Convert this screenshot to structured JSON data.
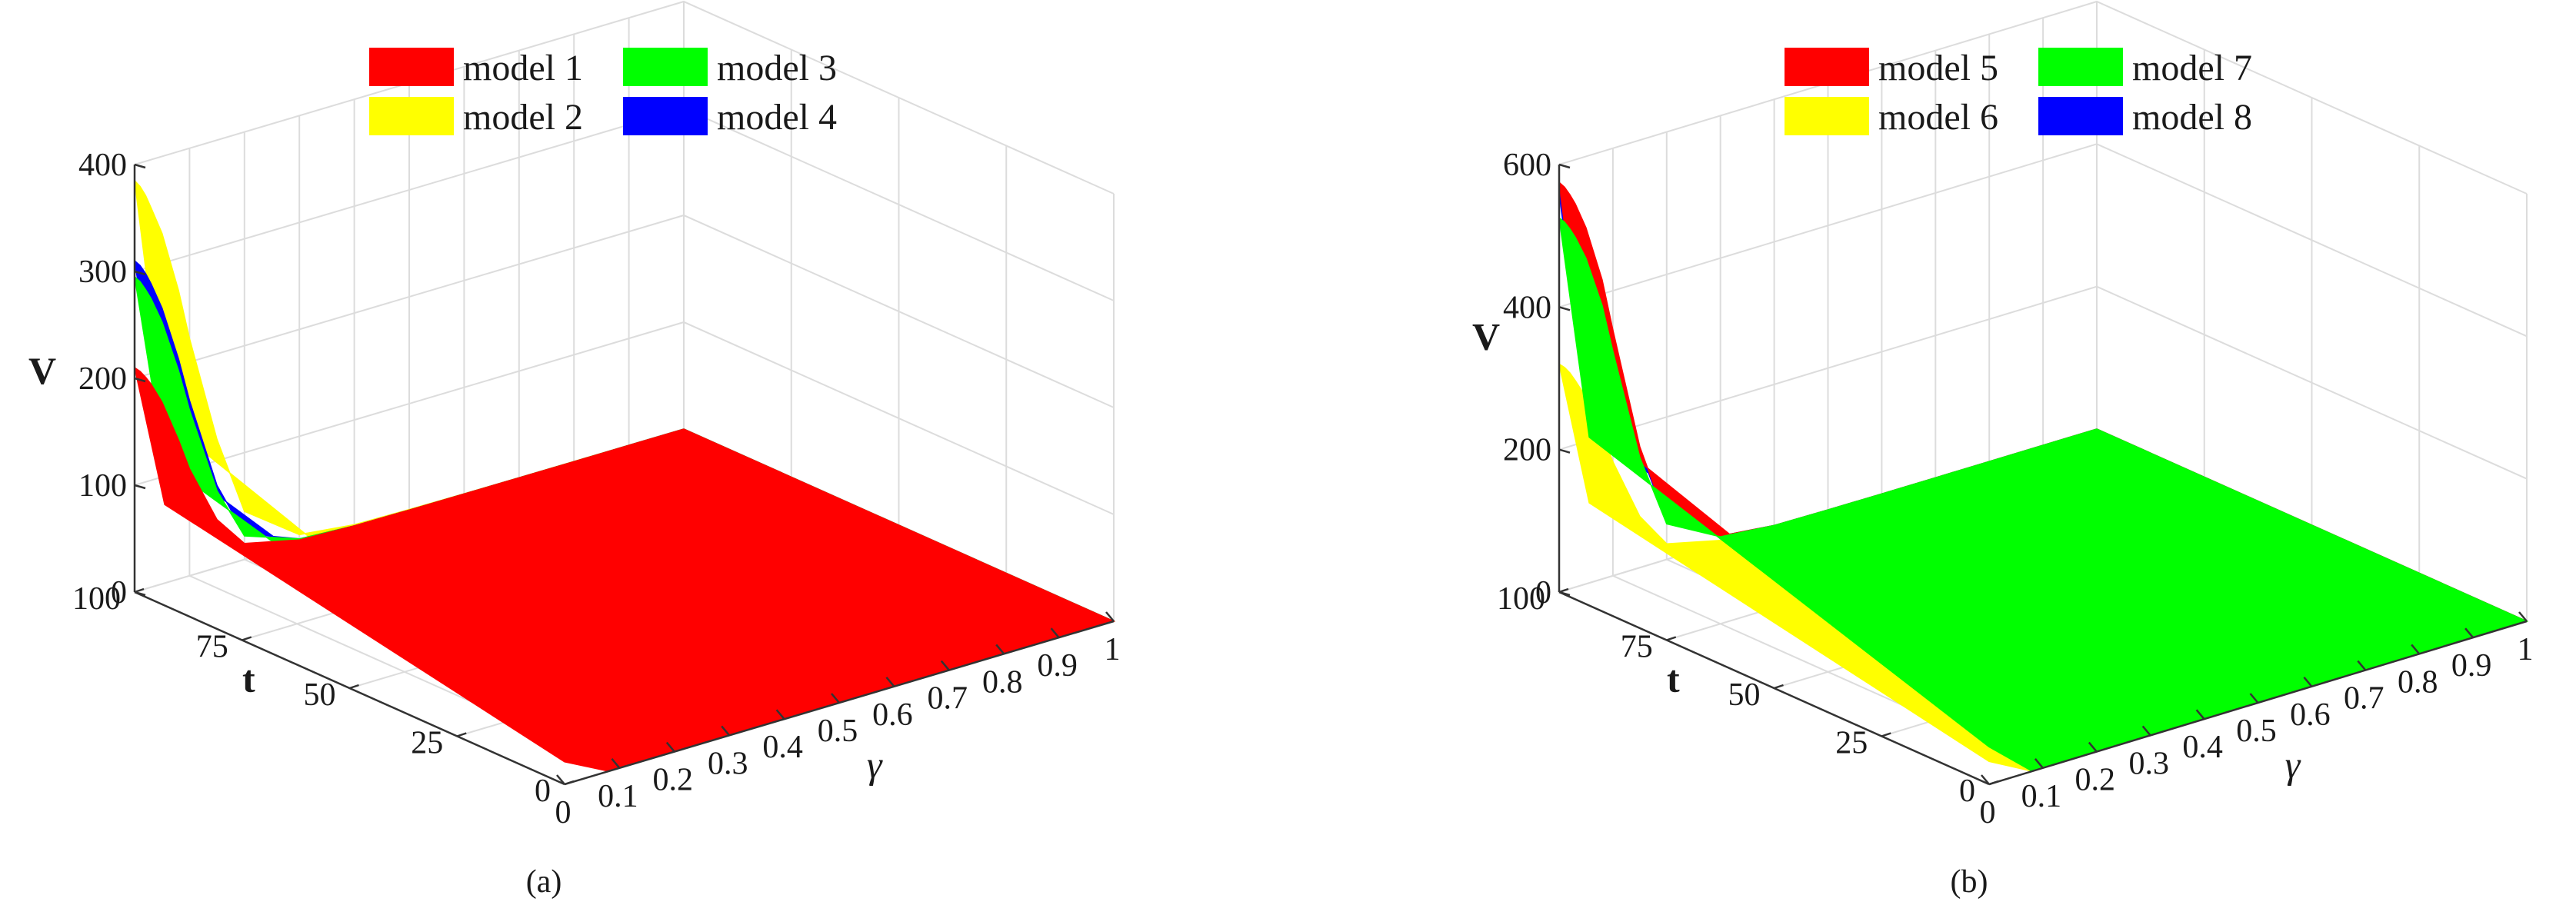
{
  "chart_data": [
    {
      "type": "surface",
      "caption": "(a)",
      "xlabel": "γ",
      "ylabel": "t",
      "zlabel": "V",
      "xlim": [
        0,
        1
      ],
      "ylim": [
        0,
        100
      ],
      "zlim": [
        0,
        400
      ],
      "xticks": [
        "0",
        "0.1",
        "0.2",
        "0.3",
        "0.4",
        "0.5",
        "0.6",
        "0.7",
        "0.8",
        "0.9",
        "1"
      ],
      "yticks": [
        "0",
        "25",
        "50",
        "75",
        "100"
      ],
      "zticks": [
        "0",
        "100",
        "200",
        "300",
        "400"
      ],
      "grid": true,
      "legend_position": "top",
      "series": [
        {
          "name": "model 1",
          "color": "#ff0000",
          "gamma": [
            0,
            0.01,
            0.02,
            0.03,
            0.05,
            0.08,
            0.1,
            0.15,
            0.2,
            0.3,
            0.4,
            0.5,
            0.6,
            0.7,
            0.8,
            0.9,
            1
          ],
          "v_at_t100": [
            210,
            205,
            198,
            190,
            170,
            130,
            100,
            45,
            15,
            3,
            1,
            0.5,
            0.3,
            0.2,
            0.1,
            0.05,
            0
          ]
        },
        {
          "name": "model 2",
          "color": "#ffff00",
          "gamma": [
            0,
            0.01,
            0.02,
            0.03,
            0.05,
            0.08,
            0.1,
            0.15,
            0.2,
            0.3,
            0.4,
            0.5,
            0.6,
            0.7,
            0.8,
            0.9,
            1
          ],
          "v_at_t100": [
            385,
            378,
            368,
            355,
            328,
            270,
            222,
            120,
            45,
            8,
            2,
            1,
            0.5,
            0.3,
            0.2,
            0.1,
            0
          ]
        },
        {
          "name": "model 3",
          "color": "#00ff00",
          "gamma": [
            0,
            0.01,
            0.02,
            0.03,
            0.05,
            0.08,
            0.1,
            0.15,
            0.2,
            0.3,
            0.4,
            0.5,
            0.6,
            0.7,
            0.8,
            0.9,
            1
          ],
          "v_at_t100": [
            295,
            289,
            280,
            270,
            245,
            195,
            155,
            72,
            22,
            4,
            1,
            0.5,
            0.3,
            0.2,
            0.1,
            0.05,
            0
          ]
        },
        {
          "name": "model 4",
          "color": "#0000ff",
          "gamma": [
            0,
            0.01,
            0.02,
            0.03,
            0.05,
            0.08,
            0.1,
            0.15,
            0.2,
            0.3,
            0.4,
            0.5,
            0.6,
            0.7,
            0.8,
            0.9,
            1
          ],
          "v_at_t100": [
            310,
            304,
            295,
            284,
            258,
            206,
            164,
            77,
            24,
            4,
            1,
            0.5,
            0.3,
            0.2,
            0.1,
            0.05,
            0
          ]
        }
      ]
    },
    {
      "type": "surface",
      "caption": "(b)",
      "xlabel": "γ",
      "ylabel": "t",
      "zlabel": "V",
      "xlim": [
        0,
        1
      ],
      "ylim": [
        0,
        100
      ],
      "zlim": [
        0,
        600
      ],
      "xticks": [
        "0",
        "0.1",
        "0.2",
        "0.3",
        "0.4",
        "0.5",
        "0.6",
        "0.7",
        "0.8",
        "0.9",
        "1"
      ],
      "yticks": [
        "0",
        "25",
        "50",
        "75",
        "100"
      ],
      "zticks": [
        "0",
        "200",
        "400",
        "600"
      ],
      "grid": true,
      "legend_position": "top",
      "series": [
        {
          "name": "model 5",
          "color": "#ff0000",
          "gamma": [
            0,
            0.01,
            0.02,
            0.03,
            0.05,
            0.08,
            0.1,
            0.15,
            0.2,
            0.3,
            0.4,
            0.5,
            0.6,
            0.7,
            0.8,
            0.9,
            1
          ],
          "v_at_t100": [
            575,
            566,
            553,
            538,
            500,
            420,
            345,
            170,
            55,
            10,
            2,
            1,
            0.5,
            0.3,
            0.2,
            0.1,
            0
          ]
        },
        {
          "name": "model 6",
          "color": "#ffff00",
          "gamma": [
            0,
            0.01,
            0.02,
            0.03,
            0.05,
            0.08,
            0.1,
            0.15,
            0.2,
            0.3,
            0.4,
            0.5,
            0.6,
            0.7,
            0.8,
            0.9,
            1
          ],
          "v_at_t100": [
            320,
            313,
            303,
            290,
            262,
            205,
            160,
            72,
            22,
            4,
            1,
            0.5,
            0.3,
            0.2,
            0.1,
            0.05,
            0
          ]
        },
        {
          "name": "model 7",
          "color": "#00ff00",
          "gamma": [
            0,
            0.01,
            0.02,
            0.03,
            0.05,
            0.08,
            0.1,
            0.15,
            0.2,
            0.3,
            0.4,
            0.5,
            0.6,
            0.7,
            0.8,
            0.9,
            1
          ],
          "v_at_t100": [
            525,
            517,
            505,
            491,
            457,
            384,
            315,
            155,
            50,
            9,
            2,
            1,
            0.5,
            0.3,
            0.2,
            0.1,
            0
          ]
        },
        {
          "name": "model 8",
          "color": "#0000ff",
          "gamma": [
            0,
            0.01,
            0.02,
            0.03,
            0.05,
            0.08,
            0.1,
            0.15,
            0.2,
            0.3,
            0.4,
            0.5,
            0.6,
            0.7,
            0.8,
            0.9,
            1
          ],
          "v_at_t100": [
            560,
            551,
            538,
            523,
            487,
            409,
            336,
            165,
            54,
            10,
            2,
            1,
            0.5,
            0.3,
            0.2,
            0.1,
            0
          ]
        }
      ]
    }
  ]
}
